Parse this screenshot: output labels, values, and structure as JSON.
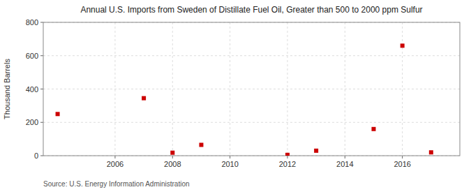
{
  "chart_data": {
    "type": "scatter",
    "title": "Annual U.S. Imports from Sweden of Distillate Fuel Oil, Greater than 500 to 2000 ppm Sulfur",
    "y_label": "Thousand Barrels",
    "source": "Source: U.S. Energy Information Administration",
    "x": [
      2004,
      2007,
      2008,
      2009,
      2012,
      2013,
      2015,
      2016,
      2017
    ],
    "values": [
      250,
      345,
      18,
      65,
      5,
      30,
      160,
      660,
      20
    ],
    "color": "#cc0000",
    "marker": "square",
    "xlim": [
      2003.5,
      2018.0
    ],
    "ylim": [
      0,
      800
    ],
    "xticks": [
      2006,
      2008,
      2010,
      2012,
      2014,
      2016
    ],
    "yticks": [
      0,
      200,
      400,
      600,
      800
    ],
    "grid": true
  }
}
